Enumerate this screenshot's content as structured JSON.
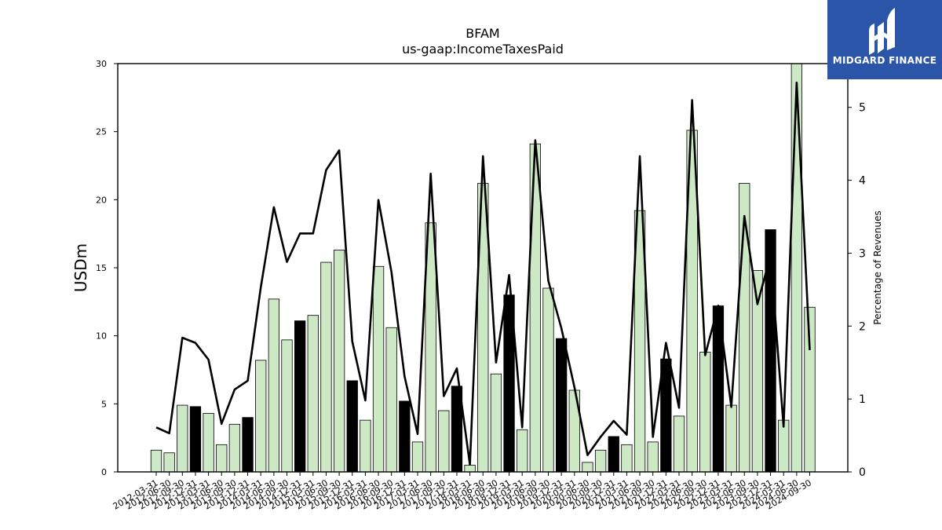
{
  "chart_data": {
    "type": "bar",
    "title": "BFAM",
    "subtitle": "us-gaap:IncomeTaxesPaid",
    "ylabel": "USDm",
    "ylabel_right": "Percentage of Revenues",
    "ylim": [
      0,
      30
    ],
    "ylim_right": [
      0,
      5.6
    ],
    "yticks": [
      0,
      5,
      10,
      15,
      20,
      25,
      30
    ],
    "yticks_right": [
      0,
      1,
      2,
      3,
      4,
      5
    ],
    "grid": false,
    "categories": [
      "2012-03-31",
      "2012-06-30",
      "2012-09-30",
      "2012-12-31",
      "2013-03-31",
      "2013-06-30",
      "2013-09-30",
      "2013-12-31",
      "2014-03-31",
      "2014-06-30",
      "2014-09-30",
      "2014-12-31",
      "2015-03-31",
      "2015-06-30",
      "2015-09-30",
      "2015-12-31",
      "2016-03-31",
      "2016-06-30",
      "2016-09-30",
      "2016-12-31",
      "2017-03-31",
      "2017-06-30",
      "2017-09-30",
      "2017-12-31",
      "2018-03-31",
      "2018-06-30",
      "2018-09-30",
      "2018-12-31",
      "2019-03-31",
      "2019-06-30",
      "2019-09-30",
      "2019-12-31",
      "2020-03-31",
      "2020-06-30",
      "2020-09-30",
      "2020-12-31",
      "2021-03-31",
      "2021-06-30",
      "2021-09-30",
      "2021-12-31",
      "2022-03-31",
      "2022-06-30",
      "2022-09-30",
      "2022-12-31",
      "2023-03-31",
      "2023-06-30",
      "2023-09-30",
      "2023-12-31",
      "2024-03-31",
      "2024-06-30",
      "2024-09-30"
    ],
    "series": [
      {
        "type": "bar",
        "values": [
          1.6,
          1.4,
          4.9,
          4.8,
          4.3,
          2.0,
          3.5,
          4.0,
          8.2,
          12.7,
          9.7,
          11.1,
          11.5,
          15.4,
          16.3,
          6.7,
          3.8,
          15.1,
          10.6,
          5.2,
          2.2,
          18.3,
          4.5,
          6.3,
          0.5,
          21.2,
          7.2,
          13.0,
          3.1,
          24.1,
          13.5,
          9.8,
          6.0,
          0.7,
          1.6,
          2.6,
          2.0,
          19.2,
          2.2,
          8.3,
          4.1,
          25.1,
          8.8,
          12.2,
          4.9,
          21.2,
          14.8,
          17.8,
          3.8,
          30.0,
          12.1
        ],
        "highlighted": [
          3,
          7,
          11,
          15,
          19,
          23,
          27,
          31,
          35,
          39,
          43,
          47
        ]
      },
      {
        "type": "line",
        "axis": "right",
        "values": [
          0.61,
          0.53,
          1.84,
          1.77,
          1.54,
          0.66,
          1.13,
          1.25,
          2.53,
          3.63,
          2.88,
          3.27,
          3.27,
          4.14,
          4.41,
          1.79,
          0.98,
          3.73,
          2.74,
          1.31,
          0.52,
          4.09,
          1.04,
          1.42,
          0.1,
          4.33,
          1.5,
          2.7,
          0.61,
          4.55,
          2.62,
          1.97,
          1.16,
          0.23,
          0.48,
          0.7,
          0.51,
          4.33,
          0.48,
          1.77,
          0.88,
          5.1,
          1.6,
          2.28,
          0.89,
          3.51,
          2.3,
          2.97,
          0.62,
          5.34,
          1.67
        ]
      }
    ],
    "colors": {
      "bar": "#cce8c4",
      "bar_highlight": "#000000",
      "bar_edge": "#000000",
      "line": "#000000"
    }
  },
  "logo": {
    "text": "MIDGARD FINANCE",
    "background": "#2b55a8"
  }
}
